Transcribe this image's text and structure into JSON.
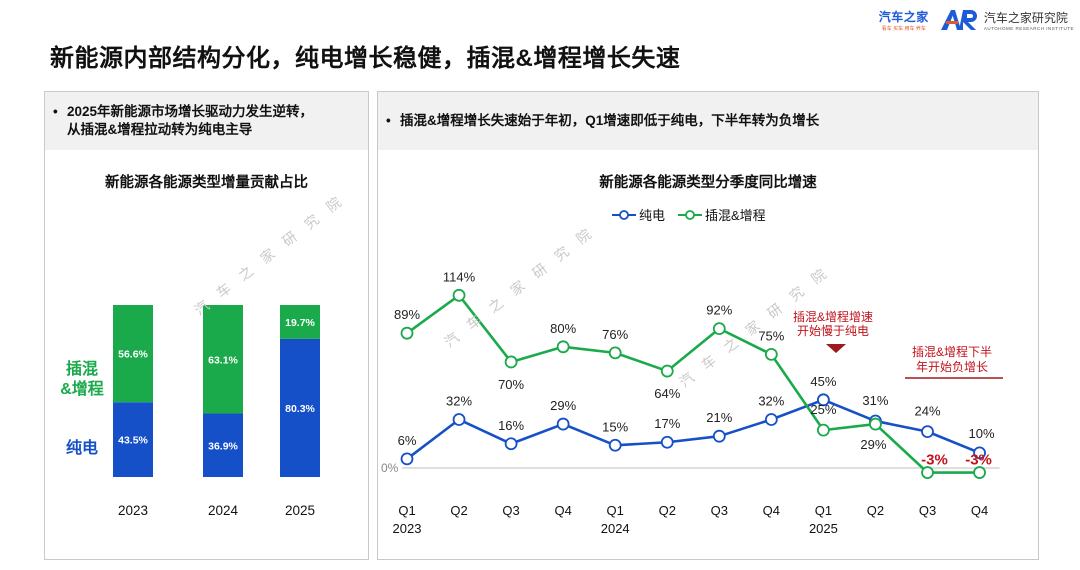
{
  "page_title": "新能源内部结构分化，纯电增长稳健，插混&增程增长失速",
  "logos": {
    "autohome": "汽车之家",
    "autohome_sub": "看车 买车 用车 养车",
    "institute": "汽车之家研究院",
    "institute_sub": "AUTOHOME RESEARCH INSTITUTE"
  },
  "watermark": "汽 车 之 家 研 究 院",
  "left_panel": {
    "note_bullet": "•",
    "note_line1": "2025年新能源市场增长驱动力发生逆转，",
    "note_line2": "从插混&增程拉动转为纯电主导"
  },
  "right_panel": {
    "note_bullet": "•",
    "note": "插混&增程增长失速始于年初，Q1增速即低于纯电，下半年转为负增长"
  },
  "colors": {
    "green": "#1aaa4b",
    "blue": "#1650c8",
    "red": "#c1131b",
    "dark_red": "#9e1a1a"
  },
  "chart_data": [
    {
      "type": "bar",
      "stacked": true,
      "percent_stacked": true,
      "title": "新能源各能源类型增量贡献占比",
      "categories": [
        "2023",
        "2024",
        "2025"
      ],
      "series": [
        {
          "name": "纯电",
          "values": [
            43.5,
            36.9,
            80.3
          ],
          "labels": [
            "43.5%",
            "36.9%",
            "80.3%"
          ],
          "color": "#1650c8"
        },
        {
          "name": "插混&增程",
          "values": [
            56.6,
            63.1,
            19.7
          ],
          "labels": [
            "56.6%",
            "63.1%",
            "19.7%"
          ],
          "color": "#1aaa4b"
        }
      ],
      "side_labels": {
        "phev_line1": "插混",
        "phev_line2": "&增程",
        "bev": "纯电"
      }
    },
    {
      "type": "line",
      "title": "新能源各能源类型分季度同比增速",
      "categories": [
        "Q1",
        "Q2",
        "Q3",
        "Q4",
        "Q1",
        "Q2",
        "Q3",
        "Q4",
        "Q1",
        "Q2",
        "Q3",
        "Q4"
      ],
      "year_labels": [
        "2023",
        "",
        "",
        "",
        "2024",
        "",
        "",
        "",
        "2025",
        "",
        "",
        ""
      ],
      "zero_label": "0%",
      "ylim": [
        -3,
        114
      ],
      "series": [
        {
          "name": "纯电",
          "color": "#1650c8",
          "values": [
            6,
            32,
            16,
            29,
            15,
            17,
            21,
            32,
            45,
            31,
            24,
            10
          ],
          "labels": [
            "6%",
            "32%",
            "16%",
            "29%",
            "15%",
            "17%",
            "21%",
            "32%",
            "45%",
            "31%",
            "24%",
            "10%"
          ]
        },
        {
          "name": "插混&增程",
          "color": "#1aaa4b",
          "values": [
            89,
            114,
            70,
            80,
            76,
            64,
            92,
            75,
            25,
            29,
            -3,
            -3
          ],
          "labels": [
            "89%",
            "114%",
            "70%",
            "80%",
            "76%",
            "64%",
            "92%",
            "75%",
            "25%",
            "29%",
            "-3%",
            "-3%"
          ]
        }
      ],
      "annotations": [
        {
          "line1": "插混&增程增速",
          "line2": "开始慢于纯电"
        },
        {
          "line1": "插混&增程下半",
          "line2": "年开始负增长"
        }
      ]
    }
  ]
}
